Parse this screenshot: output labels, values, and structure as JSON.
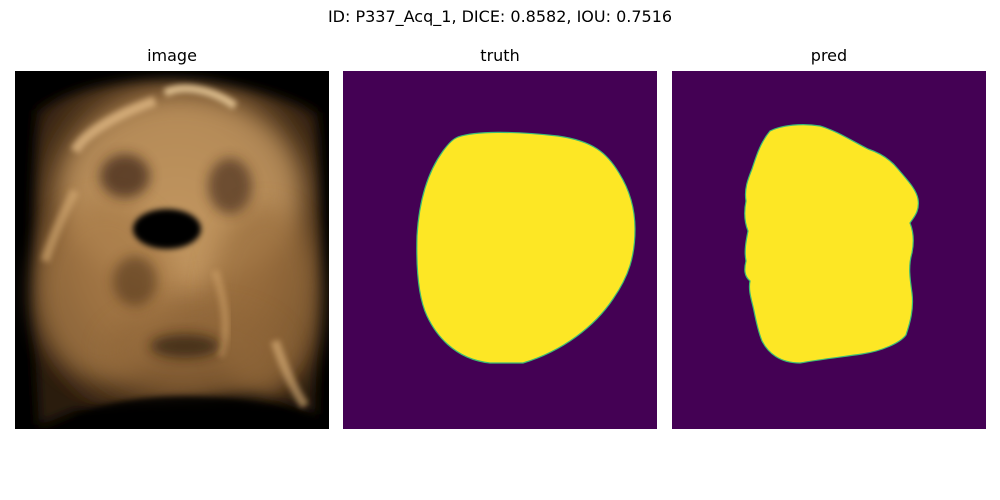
{
  "figure": {
    "title": "ID: P337_Acq_1, DICE: 0.8582, IOU: 0.7516"
  },
  "panels": [
    {
      "title": "image"
    },
    {
      "title": "truth"
    },
    {
      "title": "pred"
    }
  ],
  "colors": {
    "background_mask": "#440154",
    "foreground_mask": "#fde725",
    "boundary": "#3dbc74",
    "image_black": "#000000",
    "image_tone": "#c79a63"
  }
}
